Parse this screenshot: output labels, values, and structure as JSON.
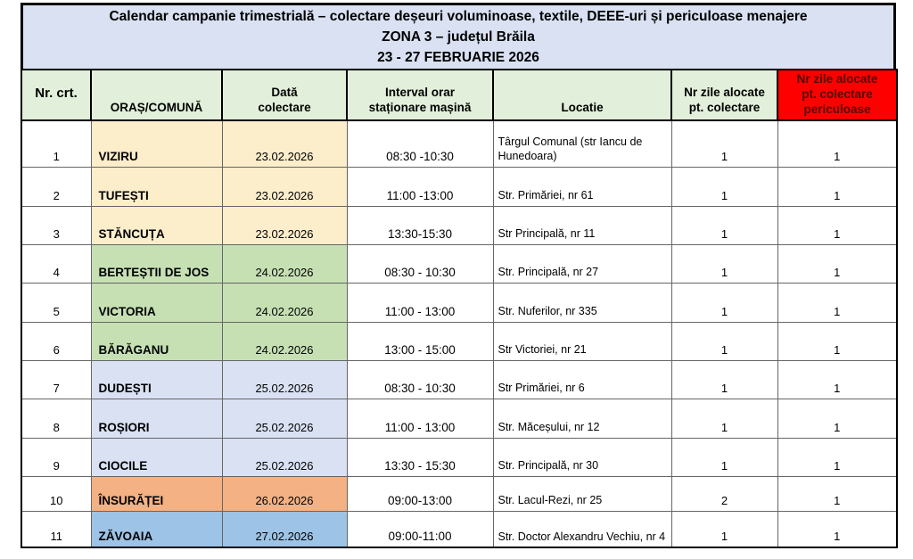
{
  "title": {
    "line1": "Calendar campanie trimestrială – colectare deșeuri voluminoase, textile, DEEE-uri și periculoase menajere",
    "line2": "ZONA 3 – județul Brăila",
    "line3": "23 - 27 FEBRUARIE 2026"
  },
  "table": {
    "headers": {
      "nr": "Nr. crt.",
      "city": "ORAȘ/COMUNĂ",
      "date": "Dată\ncolectare",
      "interval": "Interval orar\nstaționare mașină",
      "location": "Locatie",
      "days": "Nr zile alocate\npt. colectare",
      "hazard_days": "Nr zile alocate\npt. colectare\npericuloase"
    },
    "rows": [
      {
        "nr": "1",
        "city": "VIZIRU",
        "date": "23.02.2026",
        "interval": "08:30 -10:30",
        "location": "Târgul Comunal (str Iancu de Hunedoara)",
        "days": "1",
        "hazard_days": "1",
        "color": "yellow"
      },
      {
        "nr": "2",
        "city": "TUFEȘTI",
        "date": "23.02.2026",
        "interval": "11:00 -13:00",
        "location": "Str. Primăriei, nr 61",
        "days": "1",
        "hazard_days": "1",
        "color": "yellow"
      },
      {
        "nr": "3",
        "city": "STĂNCUȚA",
        "date": "23.02.2026",
        "interval": "13:30-15:30",
        "location": "Str Principală, nr 11",
        "days": "1",
        "hazard_days": "1",
        "color": "yellow"
      },
      {
        "nr": "4",
        "city": "BERTEȘTII DE JOS",
        "date": "24.02.2026",
        "interval": "08:30 - 10:30",
        "location": "Str. Principală, nr 27",
        "days": "1",
        "hazard_days": "1",
        "color": "green"
      },
      {
        "nr": "5",
        "city": "VICTORIA",
        "date": "24.02.2026",
        "interval": "11:00 - 13:00",
        "location": "Str. Nuferilor, nr 335",
        "days": "1",
        "hazard_days": "1",
        "color": "green"
      },
      {
        "nr": "6",
        "city": "BĂRĂGANU",
        "date": "24.02.2026",
        "interval": "13:00 - 15:00",
        "location": "Str Victoriei, nr 21",
        "days": "1",
        "hazard_days": "1",
        "color": "green"
      },
      {
        "nr": "7",
        "city": "DUDEȘTI",
        "date": "25.02.2026",
        "interval": "08:30 - 10:30",
        "location": "Str Primăriei, nr 6",
        "days": "1",
        "hazard_days": "1",
        "color": "lavender"
      },
      {
        "nr": "8",
        "city": "ROȘIORI",
        "date": "25.02.2026",
        "interval": "11:00 - 13:00",
        "location": "Str. Măceșului, nr 12",
        "days": "1",
        "hazard_days": "1",
        "color": "lavender"
      },
      {
        "nr": "9",
        "city": "CIOCILE",
        "date": "25.02.2026",
        "interval": "13:30 - 15:30",
        "location": "Str. Principală, nr 30",
        "days": "1",
        "hazard_days": "1",
        "color": "lavender"
      },
      {
        "nr": "10",
        "city": "ÎNSURĂȚEI",
        "date": "26.02.2026",
        "interval": "09:00-13:00",
        "location": "Str. Lacul-Rezi, nr 25",
        "days": "2",
        "hazard_days": "1",
        "color": "orange"
      },
      {
        "nr": "11",
        "city": "ZĂVOAIA",
        "date": "27.02.2026",
        "interval": "09:00-11:00",
        "location": "Str. Doctor Alexandru Vechiu, nr 4",
        "days": "1",
        "hazard_days": "1",
        "color": "blue"
      }
    ]
  },
  "palette": {
    "title_bg": "#D9E1F2",
    "header_bg": "#E2EFDA",
    "red_bg": "#FF0000",
    "red_text": "#4D0B00",
    "row_yellow": "#FCEDCB",
    "row_green": "#C6E0B4",
    "row_lavender": "#D9E1F2",
    "row_orange": "#F4B183",
    "row_blue": "#9DC3E6",
    "border_thick": "#000000",
    "border_thin": "#666666"
  }
}
